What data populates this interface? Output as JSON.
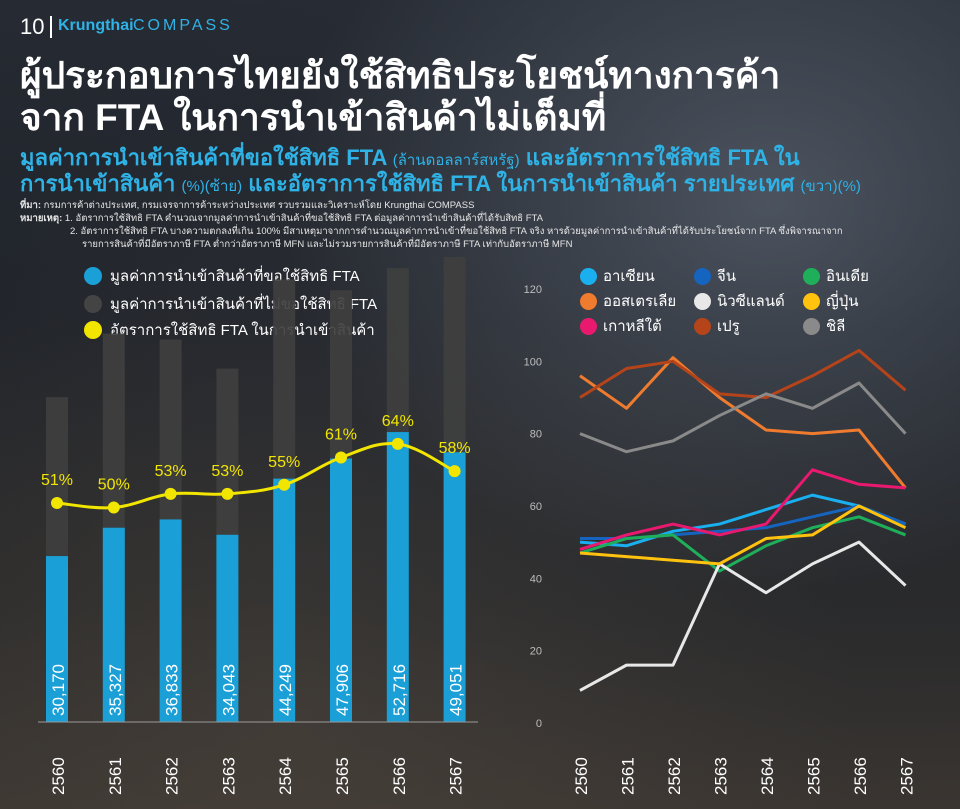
{
  "header": {
    "page_number": "10",
    "logo_primary": "Krungthai",
    "logo_secondary": "COMPASS",
    "title_line1": "ผู้ประกอบการไทยยังใช้สิทธิประโยชน์ทางการค้า",
    "title_line2": "จาก FTA ในการนำเข้าสินค้าไม่เต็มที่",
    "subtitle_line1_main": "มูลค่าการนำเข้าสินค้าที่ขอใช้สิทธิ FTA ",
    "subtitle_line1_small": "(ล้านดอลลาร์สหรัฐ)",
    "subtitle_line1_tail": " และอัตราการใช้สิทธิ FTA ใน",
    "subtitle_line2_main": "การนำเข้าสินค้า ",
    "subtitle_line2_small": "(%)(ซ้าย)",
    "subtitle_line2_tail": " และอัตราการใช้สิทธิ FTA ในการนำเข้าสินค้า รายประเทศ ",
    "subtitle_line2_small2": "(ขวา)(%)"
  },
  "notes": {
    "source_label": "ที่มา:",
    "source_text": " กรมการค้าต่างประเทศ, กรมเจรจาการค้าระหว่างประเทศ รวบรวมและวิเคราะห์โดย Krungthai COMPASS",
    "remark_label": "หมายเหตุ:",
    "remark_1": " 1. อัตราการใช้สิทธิ FTA คำนวณจากมูลค่าการนำเข้าสินค้าที่ขอใช้สิทธิ FTA ต่อมูลค่าการนำเข้าสินค้าที่ได้รับสิทธิ FTA",
    "remark_2a": "2. อัตราการใช้สิทธิ FTA บางความตกลงที่เกิน 100% มีสาเหตุมาจากการคำนวณมูลค่าการนำเข้าที่ขอใช้สิทธิ FTA จริง หารด้วยมูลค่าการนำเข้าสินค้าที่ได้รับประโยชน์จาก FTA ซึ่งพิจารณาจาก",
    "remark_2b": "รายการสินค้าที่มีอัตราภาษี FTA ต่ำกว่าอัตราภาษี MFN และไม่รวมรายการสินค้าที่มีอัตราภาษี FTA เท่ากับอัตราภาษี MFN"
  },
  "legend_left": [
    {
      "label": "มูลค่าการนำเข้าสินค้าที่ขอใช้สิทธิ FTA",
      "color": "#1a9fd6"
    },
    {
      "label": "มูลค่าการนำเข้าสินค้าที่ไม่ขอใช้สิทธิ FTA",
      "color": "#444444"
    },
    {
      "label": "อัตราการใช้สิทธิ FTA ในการนำเข้าสินค้า",
      "color": "#f2e600"
    }
  ],
  "legend_right": [
    {
      "label": "อาเซียน",
      "color": "#1ab0f0"
    },
    {
      "label": "จีน",
      "color": "#1565c0"
    },
    {
      "label": "อินเดีย",
      "color": "#1fae5a"
    },
    {
      "label": "ออสเตรเลีย",
      "color": "#ef7b2f"
    },
    {
      "label": "นิวซีแลนด์",
      "color": "#e8e8e8"
    },
    {
      "label": "ญี่ปุ่น",
      "color": "#ffc20e"
    },
    {
      "label": "เกาหลีใต้",
      "color": "#e8196f"
    },
    {
      "label": "เปรู",
      "color": "#b5441a"
    },
    {
      "label": "ชิลี",
      "color": "#8a8a8a"
    }
  ],
  "chart_data": [
    {
      "type": "bar",
      "stacked": true,
      "categories": [
        "2560",
        "2561",
        "2562",
        "2563",
        "2564",
        "2565",
        "2566",
        "2567"
      ],
      "series": [
        {
          "name": "มูลค่าการนำเข้าสินค้าที่ขอใช้สิทธิ FTA",
          "values": [
            30170,
            35327,
            36833,
            34043,
            44249,
            47906,
            52716,
            49051
          ],
          "labels": [
            "30,170",
            "35,327",
            "36,833",
            "34,043",
            "44,249",
            "47,906",
            "52,716",
            "49,051"
          ]
        },
        {
          "name": "มูลค่าการนำเข้าสินค้าที่ไม่ขอใช้สิทธิ FTA",
          "values": [
            28900,
            35300,
            32700,
            30200,
            36200,
            30600,
            29800,
            35500
          ]
        }
      ],
      "line_series": {
        "name": "อัตราการใช้สิทธิ FTA ในการนำเข้าสินค้า",
        "values": [
          51,
          50,
          53,
          53,
          55,
          61,
          64,
          58
        ],
        "labels": [
          "51%",
          "50%",
          "53%",
          "53%",
          "55%",
          "61%",
          "64%",
          "58%"
        ]
      },
      "legend_position": "top-left"
    },
    {
      "type": "line",
      "x": [
        "2560",
        "2561",
        "2562",
        "2563",
        "2564",
        "2565",
        "2566",
        "2567"
      ],
      "yticks": [
        "0",
        "20",
        "40",
        "60",
        "80",
        "100",
        "120"
      ],
      "ylim": [
        0,
        120
      ],
      "series": [
        {
          "name": "อาเซียน",
          "values": [
            50,
            49,
            53,
            55,
            59,
            63,
            60,
            55
          ]
        },
        {
          "name": "จีน",
          "values": [
            51,
            51,
            52,
            53,
            54,
            57,
            60,
            55
          ]
        },
        {
          "name": "อินเดีย",
          "values": [
            47,
            51,
            52,
            42,
            49,
            54,
            57,
            52
          ]
        },
        {
          "name": "ออสเตรเลีย",
          "values": [
            96,
            87,
            101,
            90,
            81,
            80,
            81,
            65
          ]
        },
        {
          "name": "นิวซีแลนด์",
          "values": [
            9,
            16,
            16,
            44,
            36,
            44,
            50,
            38
          ]
        },
        {
          "name": "ญี่ปุ่น",
          "values": [
            47,
            46,
            45,
            44,
            51,
            52,
            60,
            54
          ]
        },
        {
          "name": "เกาหลีใต้",
          "values": [
            48,
            52,
            55,
            52,
            55,
            70,
            66,
            65
          ]
        },
        {
          "name": "เปรู",
          "values": [
            90,
            98,
            100,
            91,
            90,
            96,
            103,
            92
          ]
        },
        {
          "name": "ชิลี",
          "values": [
            80,
            75,
            78,
            85,
            91,
            87,
            94,
            80
          ]
        }
      ],
      "legend_position": "top"
    }
  ]
}
